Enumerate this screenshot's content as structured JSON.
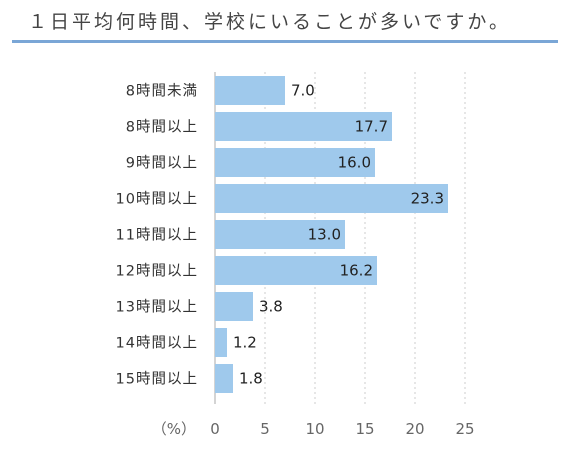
{
  "title": "１日平均何時間、学校にいることが多いですか。",
  "colors": {
    "bar": "#9fc9ec",
    "title_rule": "#7aa6d6",
    "grid": "#cccccc",
    "axis": "#aaaaaa"
  },
  "chart_data": {
    "type": "bar",
    "orientation": "horizontal",
    "title": "１日平均何時間、学校にいることが多いですか。",
    "categories": [
      "8時間未満",
      "8時間以上",
      "9時間以上",
      "10時間以上",
      "11時間以上",
      "12時間以上",
      "13時間以上",
      "14時間以上",
      "15時間以上"
    ],
    "values": [
      7.0,
      17.7,
      16.0,
      23.3,
      13.0,
      16.2,
      3.8,
      1.2,
      1.8
    ],
    "value_labels": [
      "7.0",
      "17.7",
      "16.0",
      "23.3",
      "13.0",
      "16.2",
      "3.8",
      "1.2",
      "1.8"
    ],
    "xlabel": "（%）",
    "ylabel": "",
    "xlim": [
      0,
      25
    ],
    "xticks": [
      0,
      5,
      10,
      15,
      20,
      25
    ],
    "grid": "vertical-dotted",
    "legend": "none"
  }
}
